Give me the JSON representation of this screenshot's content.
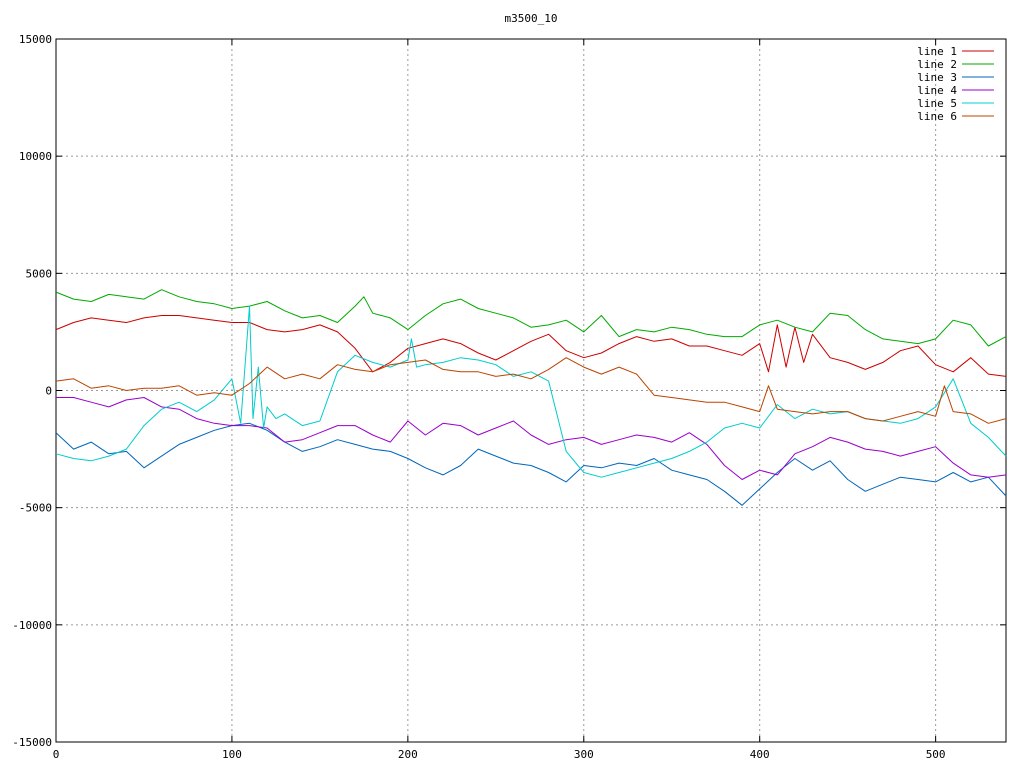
{
  "chart_data": {
    "type": "line",
    "title": "m3500_10",
    "xlabel": "",
    "ylabel": "",
    "xlim": [
      0,
      540
    ],
    "ylim": [
      -15000,
      15000
    ],
    "x_ticks": [
      0,
      100,
      200,
      300,
      400,
      500
    ],
    "y_ticks": [
      -15000,
      -10000,
      -5000,
      0,
      5000,
      10000,
      15000
    ],
    "x_tick_labels": [
      "0",
      "100",
      "200",
      "300",
      "400",
      "500"
    ],
    "y_tick_labels": [
      "-15000",
      "-10000",
      "-5000",
      "0",
      "5000",
      "10000",
      "15000"
    ],
    "grid": true,
    "legend_position": "top-right",
    "series": [
      {
        "name": "line 1",
        "color": "#cc0000",
        "x": [
          0,
          10,
          20,
          30,
          40,
          50,
          60,
          70,
          80,
          90,
          100,
          110,
          120,
          130,
          140,
          150,
          160,
          170,
          180,
          190,
          200,
          210,
          220,
          230,
          240,
          250,
          260,
          270,
          280,
          290,
          300,
          310,
          320,
          330,
          340,
          350,
          360,
          370,
          380,
          390,
          400,
          405,
          410,
          415,
          420,
          425,
          430,
          440,
          450,
          460,
          470,
          480,
          490,
          500,
          510,
          520,
          530,
          540
        ],
        "y": [
          2600,
          2900,
          3100,
          3000,
          2900,
          3100,
          3200,
          3200,
          3100,
          3000,
          2900,
          2900,
          2600,
          2500,
          2600,
          2800,
          2500,
          1800,
          800,
          1200,
          1800,
          2000,
          2200,
          2000,
          1600,
          1300,
          1700,
          2100,
          2400,
          1700,
          1400,
          1600,
          2000,
          2300,
          2100,
          2200,
          1900,
          1900,
          1700,
          1500,
          2000,
          800,
          2800,
          1000,
          2700,
          1200,
          2400,
          1400,
          1200,
          900,
          1200,
          1700,
          1900,
          1100,
          800,
          1400,
          700,
          600
        ]
      },
      {
        "name": "line 2",
        "color": "#00aa00",
        "x": [
          0,
          10,
          20,
          30,
          40,
          50,
          60,
          70,
          80,
          90,
          100,
          110,
          120,
          130,
          140,
          150,
          160,
          170,
          175,
          180,
          190,
          200,
          210,
          220,
          230,
          240,
          250,
          260,
          270,
          280,
          290,
          300,
          310,
          320,
          330,
          340,
          350,
          360,
          370,
          380,
          390,
          400,
          410,
          420,
          430,
          440,
          450,
          460,
          470,
          480,
          490,
          500,
          510,
          520,
          530,
          540
        ],
        "y": [
          4200,
          3900,
          3800,
          4100,
          4000,
          3900,
          4300,
          4000,
          3800,
          3700,
          3500,
          3600,
          3800,
          3400,
          3100,
          3200,
          2900,
          3600,
          4000,
          3300,
          3100,
          2600,
          3200,
          3700,
          3900,
          3500,
          3300,
          3100,
          2700,
          2800,
          3000,
          2500,
          3200,
          2300,
          2600,
          2500,
          2700,
          2600,
          2400,
          2300,
          2300,
          2800,
          3000,
          2700,
          2500,
          3300,
          3200,
          2600,
          2200,
          2100,
          2000,
          2200,
          3000,
          2800,
          1900,
          2300
        ]
      },
      {
        "name": "line 3",
        "color": "#0066bb",
        "x": [
          0,
          10,
          20,
          30,
          40,
          50,
          60,
          70,
          80,
          90,
          100,
          110,
          120,
          130,
          140,
          150,
          160,
          170,
          180,
          190,
          200,
          210,
          220,
          230,
          240,
          250,
          260,
          270,
          280,
          290,
          300,
          310,
          320,
          330,
          340,
          350,
          360,
          370,
          380,
          390,
          400,
          410,
          420,
          430,
          440,
          450,
          460,
          470,
          480,
          490,
          500,
          510,
          520,
          530,
          540
        ],
        "y": [
          -1800,
          -2500,
          -2200,
          -2700,
          -2600,
          -3300,
          -2800,
          -2300,
          -2000,
          -1700,
          -1500,
          -1400,
          -1700,
          -2200,
          -2600,
          -2400,
          -2100,
          -2300,
          -2500,
          -2600,
          -2900,
          -3300,
          -3600,
          -3200,
          -2500,
          -2800,
          -3100,
          -3200,
          -3500,
          -3900,
          -3200,
          -3300,
          -3100,
          -3200,
          -2900,
          -3400,
          -3600,
          -3800,
          -4300,
          -4900,
          -4200,
          -3500,
          -2900,
          -3400,
          -3000,
          -3800,
          -4300,
          -4000,
          -3700,
          -3800,
          -3900,
          -3500,
          -3900,
          -3700,
          -4500
        ]
      },
      {
        "name": "line 4",
        "color": "#9900cc",
        "x": [
          0,
          10,
          20,
          30,
          40,
          50,
          60,
          70,
          80,
          90,
          100,
          110,
          120,
          130,
          140,
          150,
          160,
          170,
          180,
          190,
          200,
          210,
          220,
          230,
          240,
          250,
          260,
          270,
          280,
          290,
          300,
          310,
          320,
          330,
          340,
          350,
          360,
          370,
          380,
          390,
          400,
          410,
          420,
          430,
          440,
          450,
          460,
          470,
          480,
          490,
          500,
          510,
          520,
          530,
          540
        ],
        "y": [
          -300,
          -300,
          -500,
          -700,
          -400,
          -300,
          -700,
          -800,
          -1200,
          -1400,
          -1500,
          -1500,
          -1600,
          -2200,
          -2100,
          -1800,
          -1500,
          -1500,
          -1900,
          -2200,
          -1300,
          -1900,
          -1400,
          -1500,
          -1900,
          -1600,
          -1300,
          -1900,
          -2300,
          -2100,
          -2000,
          -2300,
          -2100,
          -1900,
          -2000,
          -2200,
          -1800,
          -2300,
          -3200,
          -3800,
          -3400,
          -3600,
          -2700,
          -2400,
          -2000,
          -2200,
          -2500,
          -2600,
          -2800,
          -2600,
          -2400,
          -3100,
          -3600,
          -3700,
          -3600
        ]
      },
      {
        "name": "line 5",
        "color": "#00cccc",
        "x": [
          0,
          10,
          20,
          30,
          40,
          50,
          60,
          70,
          80,
          90,
          100,
          105,
          110,
          112,
          115,
          118,
          120,
          125,
          130,
          140,
          150,
          160,
          170,
          180,
          190,
          200,
          202,
          205,
          210,
          220,
          230,
          240,
          250,
          260,
          270,
          280,
          290,
          300,
          310,
          320,
          330,
          340,
          350,
          360,
          370,
          380,
          390,
          400,
          410,
          420,
          430,
          440,
          450,
          460,
          470,
          480,
          490,
          500,
          510,
          520,
          530,
          540
        ],
        "y": [
          -2700,
          -2900,
          -3000,
          -2800,
          -2500,
          -1500,
          -800,
          -500,
          -900,
          -400,
          500,
          -1400,
          3600,
          -1200,
          1000,
          -1600,
          -700,
          -1200,
          -1000,
          -1500,
          -1300,
          800,
          1500,
          1200,
          1000,
          1300,
          2200,
          1000,
          1100,
          1200,
          1400,
          1300,
          1100,
          600,
          800,
          400,
          -2600,
          -3500,
          -3700,
          -3500,
          -3300,
          -3100,
          -2900,
          -2600,
          -2200,
          -1600,
          -1400,
          -1600,
          -600,
          -1200,
          -800,
          -1000,
          -900,
          -1200,
          -1300,
          -1400,
          -1200,
          -700,
          500,
          -1400,
          -2000,
          -2800
        ]
      },
      {
        "name": "line 6",
        "color": "#bb4400",
        "x": [
          0,
          10,
          20,
          30,
          40,
          50,
          60,
          70,
          80,
          90,
          100,
          110,
          120,
          130,
          140,
          150,
          160,
          170,
          180,
          190,
          200,
          210,
          220,
          230,
          240,
          250,
          260,
          270,
          280,
          290,
          300,
          310,
          320,
          330,
          340,
          350,
          360,
          370,
          380,
          390,
          400,
          405,
          410,
          420,
          430,
          440,
          450,
          460,
          470,
          480,
          490,
          500,
          505,
          510,
          520,
          530,
          540
        ],
        "y": [
          400,
          500,
          100,
          200,
          0,
          100,
          100,
          200,
          -200,
          -100,
          -200,
          300,
          1000,
          500,
          700,
          500,
          1100,
          900,
          800,
          1100,
          1200,
          1300,
          900,
          800,
          800,
          600,
          700,
          500,
          900,
          1400,
          1000,
          700,
          1000,
          700,
          -200,
          -300,
          -400,
          -500,
          -500,
          -700,
          -900,
          200,
          -800,
          -900,
          -1000,
          -900,
          -900,
          -1200,
          -1300,
          -1100,
          -900,
          -1100,
          200,
          -900,
          -1000,
          -1400,
          -1200
        ]
      }
    ]
  }
}
